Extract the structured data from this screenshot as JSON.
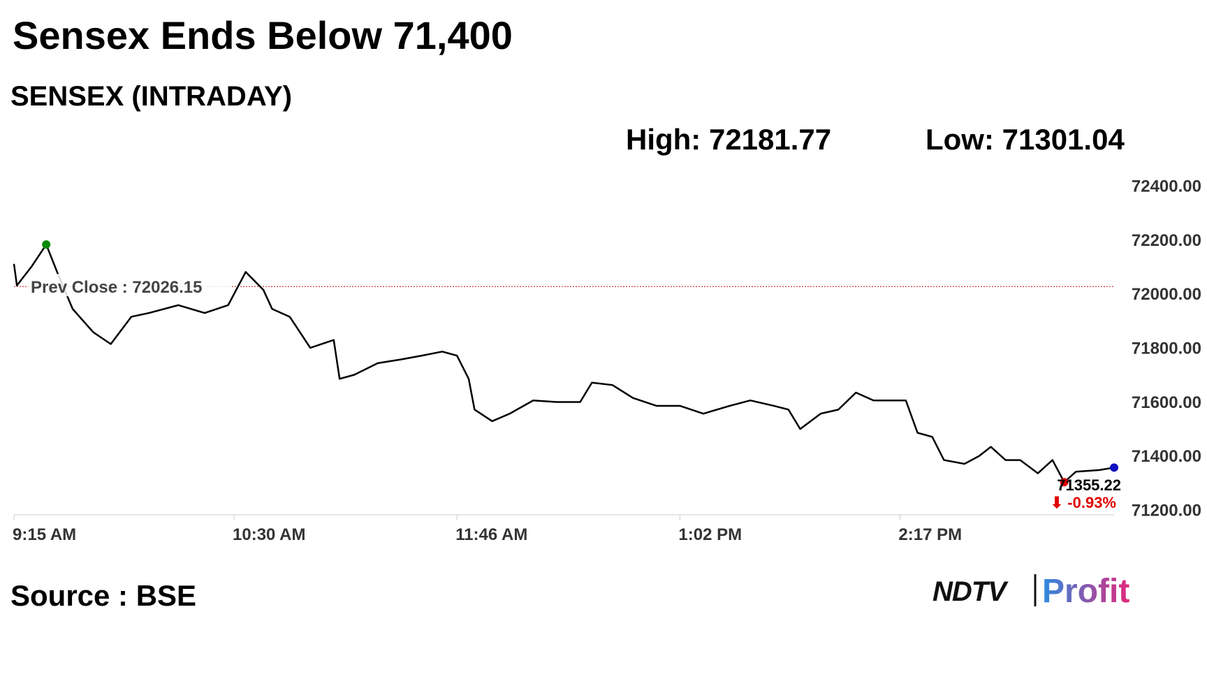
{
  "chart_data": {
    "type": "line",
    "title": "Sensex Ends Below 71,400",
    "subtitle": "SENSEX (INTRADAY)",
    "high_label": "High: 72181.77",
    "low_label": "Low: 71301.04",
    "prev_close_label": "Prev Close : 72026.15",
    "prev_close": 72026.15,
    "last_value_label": "71355.22",
    "change_label": "⬇ -0.93%",
    "source": "Source : BSE",
    "brand": "NDTV",
    "brand_suffix": "Profit",
    "color": "#000000",
    "x": [
      0,
      1,
      6,
      11,
      15,
      20,
      27,
      33,
      40,
      46,
      56,
      65,
      73,
      79,
      85,
      88,
      94,
      101,
      109,
      111,
      116,
      124,
      132,
      139,
      146,
      151,
      155,
      157,
      163,
      169,
      177,
      185,
      193,
      197,
      204,
      211,
      219,
      227,
      235,
      244,
      251,
      259,
      264,
      268,
      275,
      281,
      287,
      293,
      304,
      308,
      313,
      317,
      324,
      329,
      333,
      338,
      343,
      349,
      354,
      358,
      362,
      370,
      375
    ],
    "values": [
      72110,
      72030,
      72100,
      72181.77,
      72072,
      71943,
      71857,
      71813,
      71914,
      71928,
      71957,
      71928,
      71957,
      72080,
      72014,
      71943,
      71914,
      71799,
      71828,
      71684,
      71699,
      71742,
      71756,
      71770,
      71785,
      71770,
      71684,
      71570,
      71527,
      71555,
      71604,
      71598,
      71598,
      71670,
      71661,
      71613,
      71584,
      71584,
      71555,
      71584,
      71604,
      71584,
      71570,
      71498,
      71555,
      71570,
      71633,
      71604,
      71604,
      71484,
      71469,
      71383,
      71369,
      71398,
      71432,
      71383,
      71383,
      71334,
      71383,
      71301.04,
      71340,
      71346,
      71355.22
    ],
    "xlim": [
      0,
      375
    ],
    "xticks": [
      {
        "value": 0,
        "label": "9:15 AM"
      },
      {
        "value": 75,
        "label": "10:30 AM"
      },
      {
        "value": 151,
        "label": "11:46 AM"
      },
      {
        "value": 227,
        "label": "1:02 PM"
      },
      {
        "value": 302,
        "label": "2:17 PM"
      }
    ],
    "ylim": [
      71180,
      72420
    ],
    "yticks": [
      {
        "value": 71200,
        "label": "71200.00"
      },
      {
        "value": 71400,
        "label": "71400.00"
      },
      {
        "value": 71600,
        "label": "71600.00"
      },
      {
        "value": 71800,
        "label": "71800.00"
      },
      {
        "value": 72000,
        "label": "72000.00"
      },
      {
        "value": 72200,
        "label": "72200.00"
      },
      {
        "value": 72400,
        "label": "72400.00"
      }
    ]
  }
}
